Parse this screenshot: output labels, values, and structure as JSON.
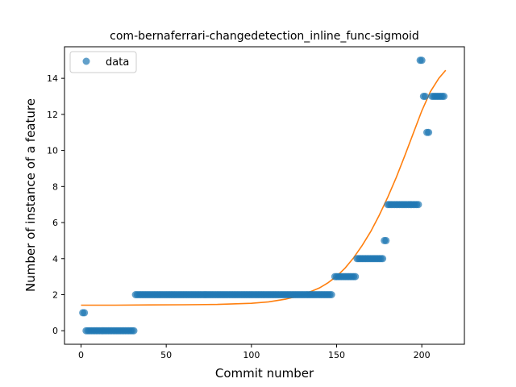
{
  "chart_data": {
    "type": "scatter",
    "title": "com-bernaferrari-changedetection_inline_func-sigmoid",
    "xlabel": "Commit number",
    "ylabel": "Number of instance of a feature",
    "xlim": [
      -9.7,
      225
    ],
    "ylim": [
      -0.75,
      15.75
    ],
    "x_ticks": [
      0,
      50,
      100,
      150,
      200
    ],
    "y_ticks": [
      0,
      2,
      4,
      6,
      8,
      10,
      12,
      14
    ],
    "grid": false,
    "legend": {
      "position": "top-left",
      "entries": [
        "data"
      ]
    },
    "colors": {
      "data": "#1f77b4",
      "fit": "#ff7f0e"
    },
    "series": [
      {
        "name": "data",
        "style": "markers",
        "points": [
          [
            1,
            1
          ],
          [
            2,
            1
          ],
          [
            3,
            0
          ],
          [
            4,
            0
          ],
          [
            5,
            0
          ],
          [
            6,
            0
          ],
          [
            7,
            0
          ],
          [
            8,
            0
          ],
          [
            9,
            0
          ],
          [
            10,
            0
          ],
          [
            11,
            0
          ],
          [
            12,
            0
          ],
          [
            13,
            0
          ],
          [
            14,
            0
          ],
          [
            15,
            0
          ],
          [
            16,
            0
          ],
          [
            17,
            0
          ],
          [
            18,
            0
          ],
          [
            19,
            0
          ],
          [
            20,
            0
          ],
          [
            21,
            0
          ],
          [
            22,
            0
          ],
          [
            23,
            0
          ],
          [
            24,
            0
          ],
          [
            25,
            0
          ],
          [
            26,
            0
          ],
          [
            27,
            0
          ],
          [
            28,
            0
          ],
          [
            29,
            0
          ],
          [
            30,
            0
          ],
          [
            31,
            0
          ],
          [
            32,
            2
          ],
          [
            33,
            2
          ],
          [
            34,
            2
          ],
          [
            35,
            2
          ],
          [
            36,
            2
          ],
          [
            37,
            2
          ],
          [
            38,
            2
          ],
          [
            39,
            2
          ],
          [
            40,
            2
          ],
          [
            41,
            2
          ],
          [
            42,
            2
          ],
          [
            43,
            2
          ],
          [
            44,
            2
          ],
          [
            45,
            2
          ],
          [
            46,
            2
          ],
          [
            47,
            2
          ],
          [
            48,
            2
          ],
          [
            49,
            2
          ],
          [
            50,
            2
          ],
          [
            51,
            2
          ],
          [
            52,
            2
          ],
          [
            53,
            2
          ],
          [
            54,
            2
          ],
          [
            55,
            2
          ],
          [
            56,
            2
          ],
          [
            57,
            2
          ],
          [
            58,
            2
          ],
          [
            59,
            2
          ],
          [
            60,
            2
          ],
          [
            61,
            2
          ],
          [
            62,
            2
          ],
          [
            63,
            2
          ],
          [
            64,
            2
          ],
          [
            65,
            2
          ],
          [
            66,
            2
          ],
          [
            67,
            2
          ],
          [
            68,
            2
          ],
          [
            69,
            2
          ],
          [
            70,
            2
          ],
          [
            71,
            2
          ],
          [
            72,
            2
          ],
          [
            73,
            2
          ],
          [
            74,
            2
          ],
          [
            75,
            2
          ],
          [
            76,
            2
          ],
          [
            77,
            2
          ],
          [
            78,
            2
          ],
          [
            79,
            2
          ],
          [
            80,
            2
          ],
          [
            81,
            2
          ],
          [
            82,
            2
          ],
          [
            83,
            2
          ],
          [
            84,
            2
          ],
          [
            85,
            2
          ],
          [
            86,
            2
          ],
          [
            87,
            2
          ],
          [
            88,
            2
          ],
          [
            89,
            2
          ],
          [
            90,
            2
          ],
          [
            91,
            2
          ],
          [
            92,
            2
          ],
          [
            93,
            2
          ],
          [
            94,
            2
          ],
          [
            95,
            2
          ],
          [
            96,
            2
          ],
          [
            97,
            2
          ],
          [
            98,
            2
          ],
          [
            99,
            2
          ],
          [
            100,
            2
          ],
          [
            101,
            2
          ],
          [
            102,
            2
          ],
          [
            103,
            2
          ],
          [
            104,
            2
          ],
          [
            105,
            2
          ],
          [
            106,
            2
          ],
          [
            107,
            2
          ],
          [
            108,
            2
          ],
          [
            109,
            2
          ],
          [
            110,
            2
          ],
          [
            111,
            2
          ],
          [
            112,
            2
          ],
          [
            113,
            2
          ],
          [
            114,
            2
          ],
          [
            115,
            2
          ],
          [
            116,
            2
          ],
          [
            117,
            2
          ],
          [
            118,
            2
          ],
          [
            119,
            2
          ],
          [
            120,
            2
          ],
          [
            121,
            2
          ],
          [
            122,
            2
          ],
          [
            123,
            2
          ],
          [
            124,
            2
          ],
          [
            125,
            2
          ],
          [
            126,
            2
          ],
          [
            127,
            2
          ],
          [
            128,
            2
          ],
          [
            129,
            2
          ],
          [
            130,
            2
          ],
          [
            131,
            2
          ],
          [
            132,
            2
          ],
          [
            133,
            2
          ],
          [
            134,
            2
          ],
          [
            135,
            2
          ],
          [
            136,
            2
          ],
          [
            137,
            2
          ],
          [
            138,
            2
          ],
          [
            139,
            2
          ],
          [
            140,
            2
          ],
          [
            141,
            2
          ],
          [
            142,
            2
          ],
          [
            143,
            2
          ],
          [
            144,
            2
          ],
          [
            145,
            2
          ],
          [
            146,
            2
          ],
          [
            147,
            2
          ],
          [
            149,
            3
          ],
          [
            150,
            3
          ],
          [
            151,
            3
          ],
          [
            152,
            3
          ],
          [
            153,
            3
          ],
          [
            154,
            3
          ],
          [
            155,
            3
          ],
          [
            156,
            3
          ],
          [
            157,
            3
          ],
          [
            158,
            3
          ],
          [
            159,
            3
          ],
          [
            160,
            3
          ],
          [
            161,
            3
          ],
          [
            162,
            4
          ],
          [
            163,
            4
          ],
          [
            164,
            4
          ],
          [
            165,
            4
          ],
          [
            166,
            4
          ],
          [
            167,
            4
          ],
          [
            168,
            4
          ],
          [
            169,
            4
          ],
          [
            170,
            4
          ],
          [
            171,
            4
          ],
          [
            172,
            4
          ],
          [
            173,
            4
          ],
          [
            174,
            4
          ],
          [
            175,
            4
          ],
          [
            176,
            4
          ],
          [
            177,
            4
          ],
          [
            178,
            5
          ],
          [
            179,
            5
          ],
          [
            180,
            7
          ],
          [
            181,
            7
          ],
          [
            182,
            7
          ],
          [
            183,
            7
          ],
          [
            184,
            7
          ],
          [
            185,
            7
          ],
          [
            186,
            7
          ],
          [
            187,
            7
          ],
          [
            188,
            7
          ],
          [
            189,
            7
          ],
          [
            190,
            7
          ],
          [
            191,
            7
          ],
          [
            192,
            7
          ],
          [
            193,
            7
          ],
          [
            194,
            7
          ],
          [
            195,
            7
          ],
          [
            196,
            7
          ],
          [
            197,
            7
          ],
          [
            198,
            7
          ],
          [
            199,
            15
          ],
          [
            200,
            15
          ],
          [
            201,
            13
          ],
          [
            202,
            13
          ],
          [
            203,
            11
          ],
          [
            204,
            11
          ],
          [
            206,
            13
          ],
          [
            207,
            13
          ],
          [
            208,
            13
          ],
          [
            209,
            13
          ],
          [
            210,
            13
          ],
          [
            211,
            13
          ],
          [
            212,
            13
          ],
          [
            213,
            13
          ]
        ]
      },
      {
        "style": "line",
        "points": [
          [
            0,
            1.42
          ],
          [
            20,
            1.42
          ],
          [
            40,
            1.43
          ],
          [
            60,
            1.44
          ],
          [
            80,
            1.46
          ],
          [
            100,
            1.52
          ],
          [
            110,
            1.6
          ],
          [
            120,
            1.75
          ],
          [
            130,
            1.98
          ],
          [
            140,
            2.38
          ],
          [
            145,
            2.66
          ],
          [
            150,
            3.02
          ],
          [
            155,
            3.48
          ],
          [
            160,
            4.05
          ],
          [
            165,
            4.73
          ],
          [
            170,
            5.5
          ],
          [
            175,
            6.4
          ],
          [
            180,
            7.4
          ],
          [
            185,
            8.5
          ],
          [
            190,
            9.7
          ],
          [
            195,
            10.95
          ],
          [
            200,
            12.2
          ],
          [
            205,
            13.25
          ],
          [
            210,
            14.0
          ],
          [
            214,
            14.45
          ]
        ]
      }
    ]
  }
}
